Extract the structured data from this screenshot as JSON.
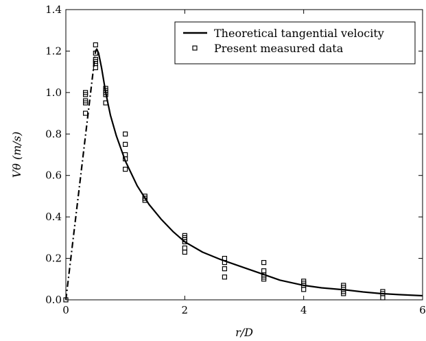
{
  "chart_data": {
    "type": "line",
    "xlabel": "r/D",
    "ylabel": "Vθ (m/s)",
    "xlim": [
      0,
      6
    ],
    "ylim": [
      0,
      1.4
    ],
    "x_ticks": [
      "0",
      "2",
      "4",
      "6"
    ],
    "y_ticks": [
      "0.0",
      "0.2",
      "0.4",
      "0.6",
      "0.8",
      "1.0",
      "1.2",
      "1.4"
    ],
    "legend_position": "top-right",
    "series": [
      {
        "name": "Theoretical tangential velocity",
        "style": "solid",
        "x": [
          0.5,
          0.52,
          0.55,
          0.6,
          0.67,
          0.75,
          0.85,
          1.0,
          1.2,
          1.4,
          1.6,
          1.8,
          2.0,
          2.3,
          2.6,
          3.0,
          3.3,
          3.6,
          4.0,
          4.3,
          4.7,
          5.0,
          5.3,
          5.6,
          6.0
        ],
        "y": [
          1.2,
          1.21,
          1.19,
          1.12,
          1.0,
          0.89,
          0.79,
          0.67,
          0.55,
          0.46,
          0.39,
          0.33,
          0.28,
          0.23,
          0.195,
          0.155,
          0.125,
          0.095,
          0.07,
          0.058,
          0.048,
          0.038,
          0.03,
          0.025,
          0.02
        ]
      },
      {
        "name": "",
        "style": "dash-dot",
        "x": [
          0,
          0.25,
          0.5
        ],
        "y": [
          0.0,
          0.6,
          1.2
        ]
      },
      {
        "name": "Present measured data",
        "style": "markers",
        "x": [
          0,
          0.33,
          0.33,
          0.33,
          0.33,
          0.33,
          0.5,
          0.5,
          0.5,
          0.5,
          0.5,
          0.5,
          0.67,
          0.67,
          0.67,
          0.67,
          0.67,
          1.0,
          1.0,
          1.0,
          1.0,
          1.0,
          1.33,
          1.33,
          1.33,
          2.0,
          2.0,
          2.0,
          2.0,
          2.0,
          2.0,
          2.67,
          2.67,
          2.67,
          2.67,
          3.33,
          3.33,
          3.33,
          3.33,
          3.33,
          4.0,
          4.0,
          4.0,
          4.0,
          4.67,
          4.67,
          4.67,
          4.67,
          5.33,
          5.33,
          5.33
        ],
        "y": [
          0.0,
          0.9,
          0.95,
          0.99,
          1.0,
          0.96,
          1.12,
          1.14,
          1.16,
          1.19,
          1.23,
          1.15,
          0.95,
          0.99,
          1.01,
          1.02,
          1.0,
          0.63,
          0.68,
          0.7,
          0.75,
          0.8,
          0.48,
          0.49,
          0.5,
          0.23,
          0.25,
          0.28,
          0.29,
          0.3,
          0.31,
          0.11,
          0.15,
          0.18,
          0.2,
          0.1,
          0.12,
          0.14,
          0.18,
          0.11,
          0.05,
          0.07,
          0.08,
          0.09,
          0.03,
          0.04,
          0.06,
          0.07,
          0.01,
          0.03,
          0.04
        ]
      }
    ]
  }
}
